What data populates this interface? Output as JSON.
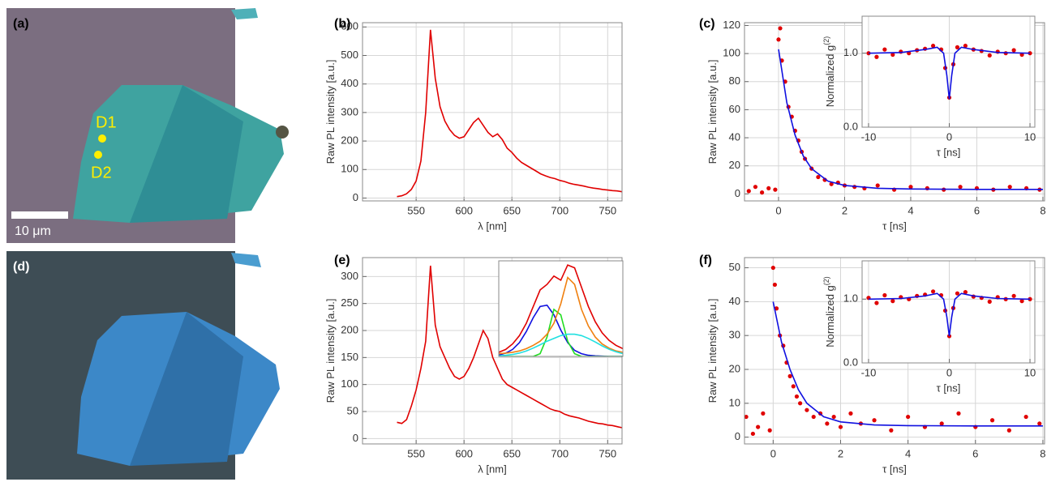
{
  "images": [
    {
      "label": "(a)",
      "markers": [
        "D1",
        "D2"
      ],
      "scale_bar": "10 μm"
    },
    {
      "label": "(d)"
    }
  ],
  "chart_data": [
    {
      "type": "line",
      "label": "(b)",
      "xlabel": "λ [nm]",
      "ylabel": "Raw PL intensity [a.u.]",
      "xlim": [
        494,
        765
      ],
      "ylim": [
        -10,
        615
      ],
      "xticks": [
        550,
        600,
        650,
        700,
        750
      ],
      "yticks": [
        0,
        100,
        200,
        300,
        400,
        500,
        600
      ],
      "grid": true,
      "x": [
        530,
        535,
        540,
        545,
        550,
        555,
        560,
        565,
        570,
        575,
        580,
        585,
        590,
        595,
        600,
        605,
        610,
        615,
        620,
        625,
        630,
        635,
        640,
        645,
        650,
        655,
        660,
        665,
        670,
        675,
        680,
        685,
        690,
        695,
        700,
        705,
        710,
        715,
        720,
        725,
        730,
        735,
        740,
        745,
        750,
        755,
        760,
        765
      ],
      "series": [
        {
          "color": "#e00000",
          "mode": "lines",
          "values": [
            5,
            8,
            15,
            30,
            60,
            130,
            300,
            590,
            420,
            320,
            270,
            240,
            220,
            210,
            215,
            240,
            265,
            280,
            255,
            230,
            215,
            225,
            205,
            175,
            160,
            140,
            125,
            115,
            105,
            95,
            85,
            78,
            72,
            68,
            62,
            58,
            52,
            48,
            45,
            42,
            38,
            35,
            33,
            30,
            28,
            26,
            25,
            22
          ]
        }
      ]
    },
    {
      "type": "scatter",
      "label": "(c)",
      "xlabel": "τ [ns]",
      "ylabel": "Raw PL intensity [a.u.]",
      "xlim": [
        -1.03,
        8.05
      ],
      "ylim": [
        -5,
        122
      ],
      "xticks": [
        0,
        2,
        4,
        6,
        8
      ],
      "yticks": [
        0,
        20,
        40,
        60,
        80,
        100,
        120
      ],
      "grid": true,
      "series": [
        {
          "color": "#e00000",
          "mode": "markers",
          "x": [
            -0.9,
            -0.7,
            -0.5,
            -0.3,
            -0.1,
            0,
            0.05,
            0.1,
            0.2,
            0.3,
            0.4,
            0.5,
            0.6,
            0.7,
            0.8,
            1.0,
            1.2,
            1.4,
            1.6,
            1.8,
            2.0,
            2.3,
            2.6,
            3.0,
            3.5,
            4.0,
            4.5,
            5.0,
            5.5,
            6.0,
            6.5,
            7.0,
            7.5,
            7.9
          ],
          "values": [
            2,
            5,
            1,
            4,
            3,
            110,
            118,
            95,
            80,
            62,
            55,
            45,
            38,
            30,
            25,
            18,
            12,
            10,
            7,
            8,
            6,
            5,
            4,
            6,
            3,
            5,
            4,
            3,
            5,
            4,
            3,
            5,
            4,
            3
          ]
        },
        {
          "color": "#1010e0",
          "mode": "lines",
          "x": [
            0,
            0.25,
            0.5,
            0.75,
            1,
            1.5,
            2,
            3,
            4,
            6,
            8
          ],
          "values": [
            103,
            65,
            42,
            27,
            18,
            9,
            6,
            4,
            3.5,
            3.2,
            3.2
          ]
        }
      ]
    },
    {
      "type": "scatter",
      "xlabel": "τ [ns]",
      "ylabel": "Normalized g",
      "ylabel_sup": "(2)",
      "xlim": [
        -10.8,
        10.6
      ],
      "ylim": [
        0,
        1.5
      ],
      "xticks": [
        -10,
        0,
        10
      ],
      "yticks": [
        {
          "value": 0,
          "label": "0.0"
        },
        {
          "value": 1,
          "label": "1.0"
        }
      ],
      "grid": true,
      "series": [
        {
          "color": "#e00000",
          "mode": "markers",
          "x": [
            -10,
            -9,
            -8,
            -7,
            -6,
            -5,
            -4,
            -3,
            -2,
            -1,
            -0.5,
            0,
            0.5,
            1,
            2,
            3,
            4,
            5,
            6,
            7,
            8,
            9,
            10
          ],
          "values": [
            1.0,
            0.95,
            1.05,
            0.98,
            1.02,
            1.0,
            1.04,
            1.06,
            1.1,
            1.05,
            0.8,
            0.4,
            0.85,
            1.08,
            1.1,
            1.05,
            1.03,
            0.97,
            1.02,
            1.0,
            1.04,
            0.98,
            1.0
          ]
        },
        {
          "color": "#1010e0",
          "mode": "lines",
          "x": [
            -10,
            -6,
            -3,
            -1.5,
            -0.7,
            -0.3,
            0,
            0.3,
            0.7,
            1.5,
            3,
            6,
            10
          ],
          "values": [
            1,
            1.01,
            1.05,
            1.08,
            1.0,
            0.7,
            0.38,
            0.7,
            1.0,
            1.08,
            1.05,
            1.01,
            1
          ]
        }
      ]
    },
    {
      "type": "line",
      "label": "(e)",
      "xlabel": "λ [nm]",
      "ylabel": "Raw PL intensity [a.u.]",
      "xlim": [
        494,
        765
      ],
      "ylim": [
        -10,
        335
      ],
      "xticks": [
        550,
        600,
        650,
        700,
        750
      ],
      "yticks": [
        0,
        50,
        100,
        150,
        200,
        250,
        300
      ],
      "grid": true,
      "x": [
        530,
        535,
        540,
        545,
        550,
        555,
        560,
        565,
        570,
        575,
        580,
        585,
        590,
        595,
        600,
        605,
        610,
        615,
        620,
        625,
        630,
        635,
        640,
        645,
        650,
        655,
        660,
        665,
        670,
        675,
        680,
        685,
        690,
        695,
        700,
        705,
        710,
        715,
        720,
        725,
        730,
        735,
        740,
        745,
        750,
        755,
        760,
        765
      ],
      "series": [
        {
          "color": "#e00000",
          "mode": "lines",
          "values": [
            30,
            28,
            35,
            60,
            90,
            130,
            180,
            320,
            210,
            170,
            150,
            130,
            115,
            110,
            115,
            130,
            150,
            175,
            200,
            185,
            150,
            130,
            110,
            100,
            95,
            90,
            85,
            80,
            75,
            70,
            65,
            60,
            55,
            52,
            50,
            45,
            42,
            40,
            38,
            35,
            32,
            30,
            28,
            27,
            25,
            24,
            22,
            20
          ]
        }
      ]
    },
    {
      "type": "line",
      "xlim": [
        600,
        780
      ],
      "ylim": [
        0,
        345
      ],
      "grid": false,
      "x": [
        600,
        610,
        620,
        630,
        640,
        650,
        660,
        670,
        680,
        690,
        700,
        710,
        720,
        730,
        740,
        750,
        760,
        770,
        780
      ],
      "series": [
        {
          "color": "#e00000",
          "mode": "lines",
          "values": [
            15,
            25,
            45,
            75,
            120,
            180,
            240,
            260,
            290,
            275,
            330,
            320,
            250,
            180,
            125,
            85,
            58,
            40,
            28
          ]
        },
        {
          "color": "#1010e0",
          "mode": "lines",
          "values": [
            5,
            12,
            25,
            50,
            90,
            140,
            180,
            185,
            150,
            95,
            50,
            22,
            10,
            4,
            2,
            1,
            0,
            0,
            0
          ]
        },
        {
          "color": "#22dd22",
          "mode": "lines",
          "values": [
            0,
            0,
            0,
            0,
            0,
            0,
            10,
            70,
            170,
            150,
            55,
            10,
            0,
            0,
            0,
            0,
            0,
            0,
            0
          ]
        },
        {
          "color": "#f08010",
          "mode": "lines",
          "values": [
            10,
            12,
            15,
            20,
            28,
            40,
            55,
            80,
            120,
            190,
            285,
            260,
            170,
            110,
            70,
            45,
            30,
            20,
            15
          ]
        },
        {
          "color": "#20e0e0",
          "mode": "lines",
          "values": [
            2,
            4,
            7,
            12,
            20,
            30,
            42,
            55,
            65,
            75,
            80,
            80,
            75,
            65,
            52,
            38,
            26,
            17,
            10
          ]
        }
      ]
    },
    {
      "type": "scatter",
      "label": "(f)",
      "xlabel": "τ [ns]",
      "ylabel": "Raw PL intensity [a.u.]",
      "xlim": [
        -0.85,
        8.05
      ],
      "ylim": [
        -2,
        53
      ],
      "xticks": [
        0,
        2,
        4,
        6,
        8
      ],
      "yticks": [
        0,
        10,
        20,
        30,
        40,
        50
      ],
      "grid": true,
      "series": [
        {
          "color": "#e00000",
          "mode": "markers",
          "x": [
            -0.8,
            -0.6,
            -0.45,
            -0.3,
            -0.1,
            0,
            0.05,
            0.1,
            0.2,
            0.3,
            0.4,
            0.5,
            0.6,
            0.7,
            0.8,
            1.0,
            1.2,
            1.4,
            1.6,
            1.8,
            2.0,
            2.3,
            2.6,
            3.0,
            3.5,
            4.0,
            4.5,
            5.0,
            5.5,
            6.0,
            6.5,
            7.0,
            7.5,
            7.9
          ],
          "values": [
            6,
            1,
            3,
            7,
            2,
            50,
            45,
            38,
            30,
            27,
            22,
            18,
            15,
            12,
            10,
            8,
            6,
            7,
            4,
            6,
            3,
            7,
            4,
            5,
            2,
            6,
            3,
            4,
            7,
            3,
            5,
            2,
            6,
            4
          ]
        },
        {
          "color": "#1010e0",
          "mode": "lines",
          "x": [
            0,
            0.25,
            0.5,
            0.75,
            1,
            1.5,
            2,
            3,
            4,
            6,
            8
          ],
          "values": [
            40,
            28,
            20,
            14,
            10,
            6,
            4.5,
            3.6,
            3.4,
            3.3,
            3.3
          ]
        }
      ]
    },
    {
      "type": "scatter",
      "xlabel": "τ [ns]",
      "ylabel": "Normalized g",
      "ylabel_sup": "(2)",
      "xlim": [
        -10.8,
        10.6
      ],
      "ylim": [
        0,
        1.6
      ],
      "xticks": [
        -10,
        0,
        10
      ],
      "yticks": [
        {
          "value": 0,
          "label": "0.0"
        },
        {
          "value": 1,
          "label": "1.0"
        }
      ],
      "grid": true,
      "series": [
        {
          "color": "#e00000",
          "mode": "markers",
          "x": [
            -10,
            -9,
            -8,
            -7,
            -6,
            -5,
            -4,
            -3,
            -2,
            -1,
            -0.5,
            0,
            0.5,
            1,
            2,
            3,
            4,
            5,
            6,
            7,
            8,
            9,
            10
          ],
          "values": [
            1.02,
            0.94,
            1.06,
            0.97,
            1.03,
            1.0,
            1.05,
            1.07,
            1.12,
            1.06,
            0.82,
            0.42,
            0.86,
            1.09,
            1.11,
            1.04,
            1.02,
            0.96,
            1.03,
            1.0,
            1.05,
            0.97,
            1.0
          ]
        },
        {
          "color": "#1010e0",
          "mode": "lines",
          "x": [
            -10,
            -6,
            -3,
            -1.5,
            -0.7,
            -0.3,
            0,
            0.3,
            0.7,
            1.5,
            3,
            6,
            10
          ],
          "values": [
            1,
            1.01,
            1.05,
            1.09,
            1.0,
            0.72,
            0.42,
            0.72,
            1.0,
            1.09,
            1.05,
            1.01,
            1
          ]
        }
      ]
    }
  ]
}
